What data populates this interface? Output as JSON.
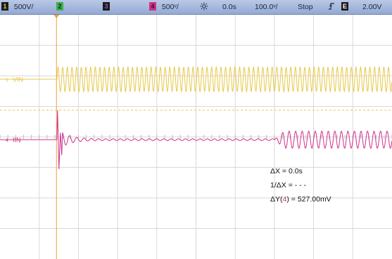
{
  "toolbar": {
    "ch1": {
      "num": "1",
      "scale": "500V/",
      "color": "#e6c84a"
    },
    "ch2": {
      "num": "2",
      "color": "#3ab04a"
    },
    "ch3": {
      "num": "3",
      "color": "#8c5ad0"
    },
    "ch4": {
      "num": "4",
      "scale": "500ᵛ/",
      "color": "#d0308a"
    },
    "trigger_icon": "sun-icon",
    "delay": "0.0s",
    "timebase": "100.0ᵛ/",
    "run_state": "Stop",
    "trigger_edge_icon": "rising-edge-icon",
    "trigger_source": "E",
    "trigger_level": "2.00V"
  },
  "chart_data": {
    "type": "line",
    "grid": true,
    "divisions": {
      "x": 10,
      "y": 8
    },
    "series": [
      {
        "name": "VIN",
        "channel": "1",
        "color": "#e6c84a",
        "marker_label": "VIN",
        "start_division": 1.45,
        "cycles": 72,
        "amplitude_divisions": 0.4
      },
      {
        "name": "IIN",
        "channel": "4",
        "color": "#d0308a",
        "marker_label": "IIN",
        "start_division": 1.45,
        "step_division": 7.0,
        "ringing_cycles": 30,
        "burst_amplitude_divisions": 0.28
      }
    ]
  },
  "measurements": {
    "dx": "ΔX = 0.0s",
    "inv_dx": "1/ΔX = - - -",
    "dy_prefix": "ΔY(",
    "dy_channel": "4",
    "dy_suffix": ") = 527.00mV"
  }
}
